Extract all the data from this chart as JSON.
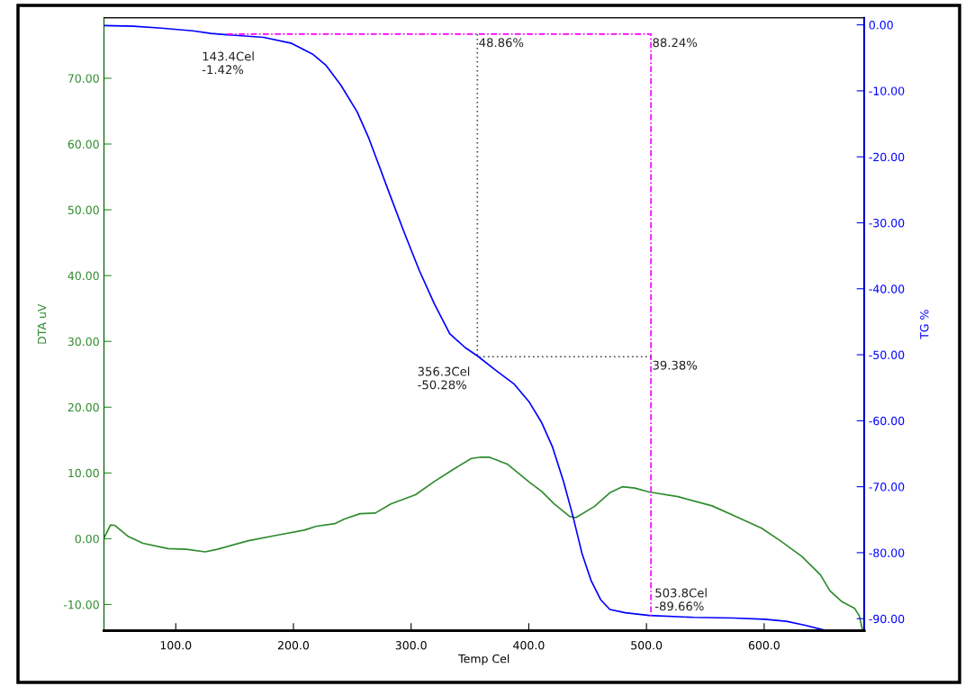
{
  "chart_data": {
    "type": "line",
    "xlabel": "Temp Cel",
    "ylabel": "DTA uV",
    "y2label": "TG %",
    "xlim": [
      39,
      685
    ],
    "xticks": [
      {
        "value": 100,
        "label": "100.0"
      },
      {
        "value": 200,
        "label": "200.0"
      },
      {
        "value": 300,
        "label": "300.0"
      },
      {
        "value": 400,
        "label": "400.0"
      },
      {
        "value": 500,
        "label": "500.0"
      },
      {
        "value": 600,
        "label": "600.0"
      }
    ],
    "ylim": [
      -14,
      79.2
    ],
    "yticks": [
      {
        "value": -10,
        "label": "-10.00"
      },
      {
        "value": 0,
        "label": "0.00"
      },
      {
        "value": 10,
        "label": "10.00"
      },
      {
        "value": 20,
        "label": "20.00"
      },
      {
        "value": 30,
        "label": "30.00"
      },
      {
        "value": 40,
        "label": "40.00"
      },
      {
        "value": 50,
        "label": "50.00"
      },
      {
        "value": 60,
        "label": "60.00"
      },
      {
        "value": 70,
        "label": "70.00"
      }
    ],
    "y2lim": [
      -91.84,
      1.08
    ],
    "y2ticks": [
      {
        "value": 0,
        "label": "0.00"
      },
      {
        "value": -10,
        "label": "-10.00"
      },
      {
        "value": -20,
        "label": "-20.00"
      },
      {
        "value": -30,
        "label": "-30.00"
      },
      {
        "value": -40,
        "label": "-40.00"
      },
      {
        "value": -50,
        "label": "-50.00"
      },
      {
        "value": -60,
        "label": "-60.00"
      },
      {
        "value": -70,
        "label": "-70.00"
      },
      {
        "value": -80,
        "label": "-80.00"
      },
      {
        "value": -90,
        "label": "-90.00"
      }
    ],
    "grid": false,
    "marker": "none",
    "line_style": "solid",
    "series": [
      {
        "color": "#2e8b2e",
        "x": [
          39.3,
          44.6,
          48.5,
          59.1,
          72.2,
          93.3,
          109.1,
          124.9,
          135.4,
          161.7,
          188,
          209.2,
          219.6,
          235.4,
          243.4,
          256.5,
          269.6,
          282.8,
          303.8,
          319.7,
          335.4,
          351.1,
          359.2,
          366.3,
          382.1,
          400.5,
          411,
          421.5,
          434.7,
          439.9,
          455.7,
          468.9,
          479.4,
          490,
          502.3,
          526.7,
          555.7,
          579.4,
          597.9,
          613.7,
          632.1,
          647.9,
          655.8,
          666.3,
          676.9,
          680.8,
          683.5
        ],
        "values": [
          0.2,
          2.1,
          2.0,
          0.4,
          -0.7,
          -1.5,
          -1.6,
          -2.0,
          -1.6,
          -0.3,
          0.6,
          1.3,
          1.9,
          2.3,
          3.0,
          3.8,
          3.9,
          5.3,
          6.7,
          8.7,
          10.5,
          12.2,
          12.4,
          12.4,
          11.3,
          8.6,
          7.2,
          5.3,
          3.4,
          3.2,
          4.9,
          7.0,
          7.9,
          7.7,
          7.1,
          6.4,
          5.0,
          3.1,
          1.6,
          -0.3,
          -2.7,
          -5.5,
          -7.9,
          -9.6,
          -10.6,
          -11.7,
          -13.8
        ]
      },
      {
        "color": "#0000ff",
        "axis": "y2",
        "x": [
          39.3,
          64.1,
          87.8,
          114.5,
          129.8,
          143.5,
          174.8,
          198.5,
          216.8,
          227.5,
          240.5,
          254.2,
          264.1,
          272.5,
          280.2,
          293.1,
          306.9,
          319.8,
          332.8,
          345.8,
          356.5,
          371.5,
          387.3,
          400.5,
          411,
          420.2,
          429.5,
          437.4,
          445.2,
          453.1,
          461,
          468.9,
          482,
          502.3,
          540,
          574,
          600.5,
          618.9,
          634.7,
          650.4
        ],
        "values": [
          -0.1,
          -0.2,
          -0.5,
          -0.9,
          -1.3,
          -1.5,
          -1.9,
          -2.8,
          -4.5,
          -6.1,
          -9.2,
          -13.2,
          -17.2,
          -21.2,
          -24.9,
          -31.0,
          -37.2,
          -42.3,
          -46.8,
          -48.9,
          -50.2,
          -52.3,
          -54.4,
          -57.2,
          -60.3,
          -64.0,
          -69.2,
          -74.4,
          -80.1,
          -84.3,
          -87.1,
          -88.6,
          -89.1,
          -89.5,
          -89.8,
          -89.9,
          -90.1,
          -90.4,
          -91.0,
          -91.7
        ]
      },
      {
        "color": "#ff00ff",
        "axis": "y2",
        "line_style": "dashed",
        "x": [
          143.4,
          503.8,
          503.8
        ],
        "values": [
          -1.4,
          -1.4,
          -89.7
        ]
      },
      {
        "color": "#444444",
        "axis": "y2",
        "line_style": "dotted",
        "x": [
          356.3,
          356.3,
          503.8
        ],
        "values": [
          -1.4,
          -50.3,
          -50.3
        ]
      }
    ],
    "annotations": [
      "143.4Cel\n-1.42%",
      "356.3Cel\n-50.28%",
      "503.8Cel\n-89.66%",
      "48.86%",
      "39.38%",
      "88.24%"
    ]
  }
}
